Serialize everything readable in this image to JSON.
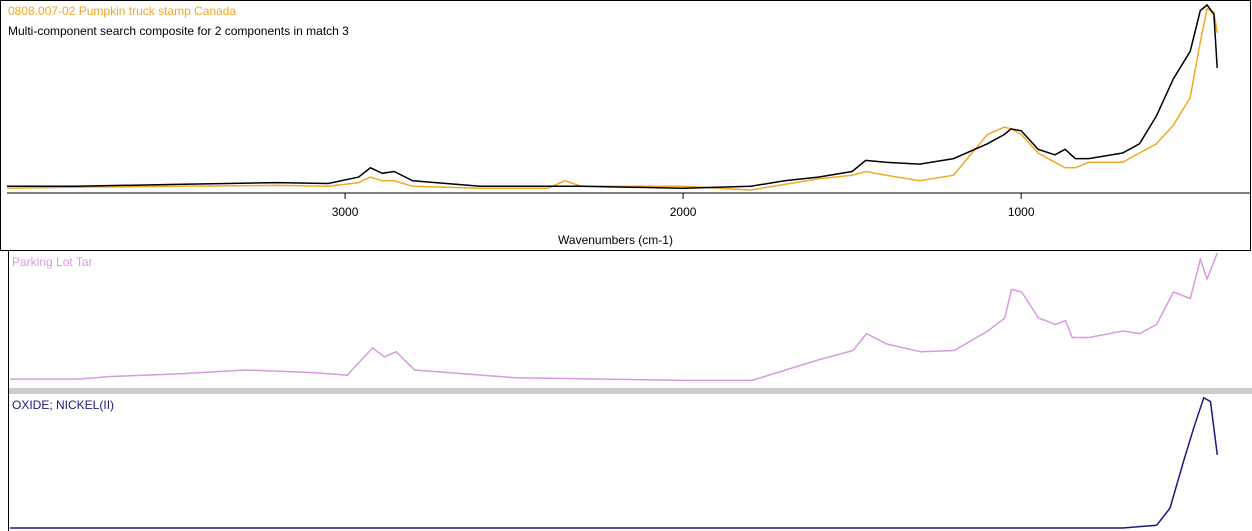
{
  "chart_data": [
    {
      "type": "line",
      "title": "0808.007-02 Pumpkin truck stamp Canada",
      "subtitle": "Multi-component search composite for 2 components in match 3",
      "xlabel": "Wavenumbers (cm-1)",
      "x": [
        4000,
        3800,
        3500,
        3200,
        3050,
        2960,
        2925,
        2890,
        2855,
        2800,
        2600,
        2400,
        2350,
        2300,
        2000,
        1800,
        1700,
        1600,
        1500,
        1460,
        1400,
        1300,
        1200,
        1100,
        1050,
        1030,
        1000,
        950,
        900,
        870,
        840,
        800,
        700,
        650,
        600,
        550,
        500,
        470,
        450,
        430,
        420
      ],
      "series": [
        {
          "name": "0808.007-02 Pumpkin truck stamp Canada",
          "color": "#f5a623",
          "values": [
            0.01,
            0.015,
            0.02,
            0.025,
            0.02,
            0.04,
            0.07,
            0.05,
            0.05,
            0.02,
            0.01,
            0.01,
            0.05,
            0.02,
            0.02,
            0.0,
            0.03,
            0.06,
            0.08,
            0.1,
            0.08,
            0.05,
            0.08,
            0.3,
            0.34,
            0.33,
            0.3,
            0.2,
            0.15,
            0.12,
            0.12,
            0.15,
            0.15,
            0.2,
            0.25,
            0.35,
            0.5,
            0.8,
            0.98,
            0.96,
            0.85
          ]
        },
        {
          "name": "Multi-component search composite for 2 components in match 3",
          "color": "#000000",
          "values": [
            0.02,
            0.02,
            0.03,
            0.04,
            0.035,
            0.07,
            0.12,
            0.09,
            0.1,
            0.05,
            0.02,
            0.02,
            0.02,
            0.02,
            0.01,
            0.02,
            0.05,
            0.07,
            0.1,
            0.16,
            0.15,
            0.14,
            0.17,
            0.25,
            0.3,
            0.33,
            0.32,
            0.22,
            0.19,
            0.22,
            0.17,
            0.17,
            0.2,
            0.25,
            0.4,
            0.6,
            0.75,
            0.97,
            1.0,
            0.95,
            0.66
          ]
        }
      ],
      "xlim": [
        4000,
        400
      ],
      "ylim": [
        0,
        1
      ],
      "xticks": [
        3000,
        2000,
        1000
      ]
    },
    {
      "type": "line",
      "title": "Parking Lot Tar",
      "x": [
        4000,
        3800,
        3700,
        3500,
        3300,
        3100,
        3000,
        2925,
        2890,
        2855,
        2800,
        2500,
        2000,
        1800,
        1700,
        1600,
        1500,
        1460,
        1400,
        1300,
        1200,
        1100,
        1050,
        1030,
        1000,
        950,
        900,
        870,
        850,
        800,
        700,
        650,
        600,
        550,
        500,
        470,
        450,
        420
      ],
      "series": [
        {
          "name": "Parking Lot Tar",
          "color": "#d89ae0",
          "values": [
            0.03,
            0.03,
            0.05,
            0.07,
            0.1,
            0.08,
            0.06,
            0.27,
            0.2,
            0.24,
            0.1,
            0.04,
            0.02,
            0.02,
            0.1,
            0.18,
            0.25,
            0.38,
            0.3,
            0.24,
            0.25,
            0.4,
            0.5,
            0.72,
            0.7,
            0.5,
            0.45,
            0.48,
            0.35,
            0.35,
            0.4,
            0.38,
            0.45,
            0.7,
            0.65,
            0.95,
            0.8,
            1.0
          ]
        }
      ],
      "xlim": [
        4000,
        400
      ],
      "ylim": [
        0,
        1
      ]
    },
    {
      "type": "line",
      "title": "OXIDE; NICKEL(II)",
      "x": [
        4000,
        2000,
        700,
        600,
        560,
        520,
        490,
        460,
        440,
        420
      ],
      "series": [
        {
          "name": "OXIDE; NICKEL(II)",
          "color": "#1a1a80",
          "values": [
            0,
            0,
            0,
            0.02,
            0.15,
            0.5,
            0.75,
            0.98,
            0.95,
            0.55
          ]
        }
      ],
      "xlim": [
        4000,
        400
      ],
      "ylim": [
        0,
        1
      ]
    }
  ]
}
